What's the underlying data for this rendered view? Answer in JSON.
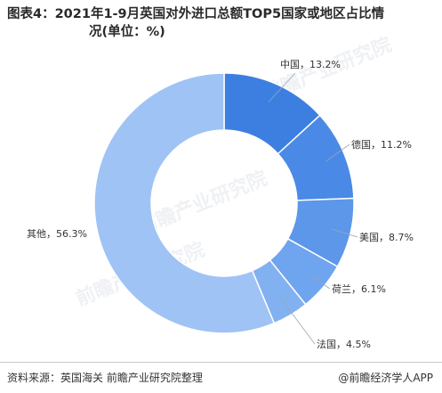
{
  "title": {
    "line1": "图表4：2021年1-9月英国对外进口总额TOP5国家或地区占比情",
    "line2": "况(单位：%)"
  },
  "chart_data": {
    "type": "pie",
    "style": "donut",
    "categories": [
      "中国",
      "德国",
      "美国",
      "荷兰",
      "法国",
      "其他"
    ],
    "values": [
      13.2,
      11.2,
      8.7,
      6.1,
      4.5,
      56.3
    ],
    "labels": [
      "中国，13.2%",
      "德国，11.2%",
      "美国，8.7%",
      "荷兰，6.1%",
      "法国，4.5%",
      "其他，56.3%"
    ],
    "colors": [
      "#3d7fe0",
      "#4a8ae6",
      "#5c97ea",
      "#6fa4ee",
      "#82b1f1",
      "#9fc3f4"
    ],
    "start_angle_deg": 0,
    "direction": "clockwise"
  },
  "footer": {
    "source": "资料来源：英国海关 前瞻产业研究院整理",
    "brand": "@前瞻经济学人APP"
  },
  "watermark": "前瞻产业研究院"
}
